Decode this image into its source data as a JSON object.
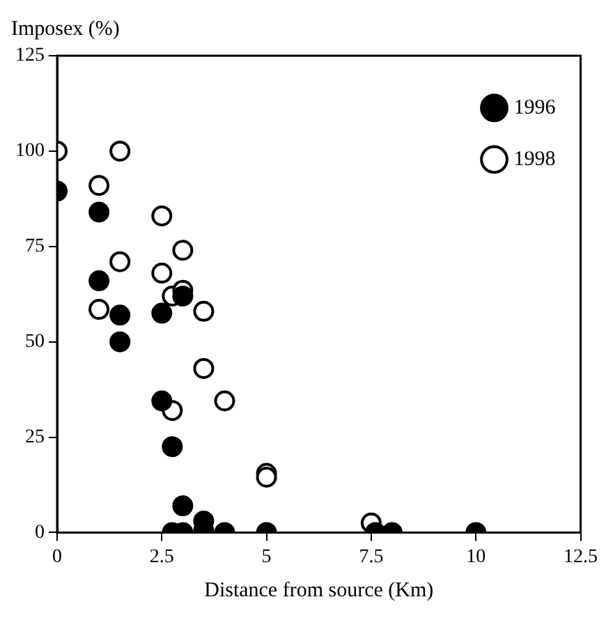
{
  "chart_data": {
    "type": "scatter",
    "ylabel": "Imposex (%)",
    "xlabel": "Distance from source (Km)",
    "xlim": [
      0,
      12.5
    ],
    "xticks": [
      0,
      2.5,
      5,
      7.5,
      10,
      12.5
    ],
    "ylim": [
      0,
      125
    ],
    "yticks": [
      0,
      25,
      50,
      75,
      100,
      125
    ],
    "grid": false,
    "legend": "top right",
    "marker": "circle",
    "series": [
      {
        "name": "1996",
        "color": "#000000",
        "x": [
          0,
          1,
          1,
          1.5,
          1.5,
          2.5,
          2.5,
          2.75,
          3,
          3,
          3.5,
          2.75,
          3,
          3.5,
          4,
          5,
          7.6,
          8,
          10
        ],
        "values": [
          89.5,
          84,
          66,
          57,
          50,
          57.5,
          34.5,
          22.5,
          62,
          7,
          3,
          0,
          0,
          0.5,
          0,
          0,
          0,
          0,
          0
        ]
      },
      {
        "name": "1998",
        "color": "#ffffff",
        "x": [
          0,
          1.5,
          1,
          2.5,
          3,
          1.5,
          2.5,
          2.75,
          3,
          1,
          3.5,
          3.5,
          2.75,
          4,
          5,
          5,
          7.5
        ],
        "values": [
          100,
          100,
          91,
          83,
          74,
          71,
          68,
          62,
          63.5,
          58.5,
          58,
          43,
          32,
          34.5,
          15.5,
          14.5,
          2.5
        ]
      }
    ]
  }
}
